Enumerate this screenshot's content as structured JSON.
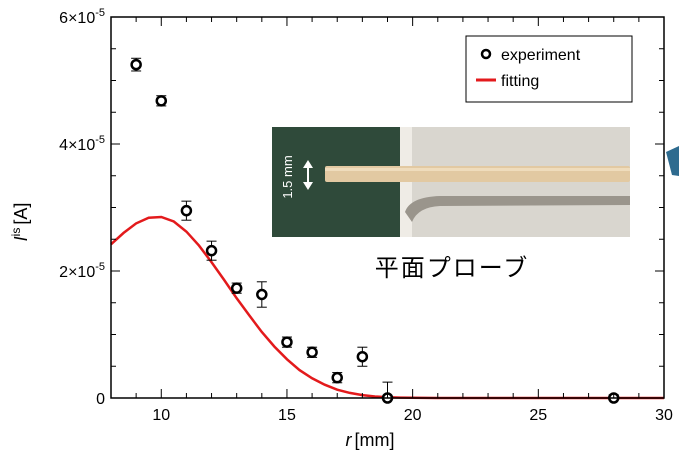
{
  "chart_data": {
    "type": "scatter",
    "xlabel": "r",
    "xlabel_unit": "[mm]",
    "ylabel": "I",
    "ylabel_sup": "is",
    "ylabel_unit": "[A]",
    "xlim": [
      8,
      30
    ],
    "ylim": [
      0,
      6e-05
    ],
    "x_ticks": [
      10,
      15,
      20,
      25,
      30
    ],
    "x_tick_labels": [
      "10",
      "15",
      "20",
      "25",
      "30"
    ],
    "y_ticks": [
      0,
      2e-05,
      4e-05,
      6e-05
    ],
    "y_tick_labels": [
      {
        "base": "0",
        "exp": ""
      },
      {
        "base": "2×10",
        "exp": "-5"
      },
      {
        "base": "4×10",
        "exp": "-5"
      },
      {
        "base": "6×10",
        "exp": "-5"
      }
    ],
    "legend": {
      "position": "top-right",
      "entries": [
        {
          "label": "experiment",
          "marker": "open-circle",
          "color": "#000000"
        },
        {
          "label": "fitting",
          "marker": "line",
          "color": "#e31a1c"
        }
      ]
    },
    "series": [
      {
        "name": "experiment",
        "marker": "open-circle",
        "color": "#000000",
        "points": [
          {
            "x": 9,
            "y": 5.25e-05,
            "err": 1e-06
          },
          {
            "x": 10,
            "y": 4.68e-05,
            "err": 8e-07
          },
          {
            "x": 11,
            "y": 2.95e-05,
            "err": 1.5e-06
          },
          {
            "x": 12,
            "y": 2.32e-05,
            "err": 1.5e-06
          },
          {
            "x": 13,
            "y": 1.73e-05,
            "err": 8e-07
          },
          {
            "x": 14,
            "y": 1.63e-05,
            "err": 2e-06
          },
          {
            "x": 15,
            "y": 8.8e-06,
            "err": 8e-07
          },
          {
            "x": 16,
            "y": 7.2e-06,
            "err": 8e-07
          },
          {
            "x": 17,
            "y": 3.2e-06,
            "err": 8e-07
          },
          {
            "x": 18,
            "y": 6.5e-06,
            "err": 1.5e-06
          },
          {
            "x": 19,
            "y": 0.0,
            "err": 2.5e-06
          },
          {
            "x": 28,
            "y": 0.0,
            "err": 5e-07
          }
        ]
      },
      {
        "name": "fitting",
        "marker": "line",
        "color": "#e31a1c",
        "x": [
          8,
          8.5,
          9,
          9.5,
          10,
          10.5,
          11,
          11.5,
          12,
          12.5,
          13,
          13.5,
          14,
          14.5,
          15,
          15.5,
          16,
          16.5,
          17,
          17.5,
          18,
          18.5,
          19,
          19.5,
          20,
          21,
          22,
          23,
          24,
          26,
          28,
          30
        ],
        "y": [
          2.42e-05,
          2.6e-05,
          2.75e-05,
          2.84e-05,
          2.85e-05,
          2.78e-05,
          2.62e-05,
          2.4e-05,
          2.14e-05,
          1.86e-05,
          1.57e-05,
          1.3e-05,
          1.04e-05,
          8.1e-06,
          6.1e-06,
          4.4e-06,
          3.1e-06,
          2.1e-06,
          1.3e-06,
          8e-07,
          4.5e-07,
          2.4e-07,
          1.2e-07,
          6e-08,
          3e-08,
          5e-09,
          0,
          0,
          0,
          0,
          0,
          0
        ]
      }
    ]
  },
  "inset": {
    "caption": "平面プローブ",
    "scale_label": "1.5 mm",
    "colors": {
      "background_left": "#2f4a3a",
      "background_right": "#d9d6cf",
      "rod": "#e2c9a2"
    }
  }
}
